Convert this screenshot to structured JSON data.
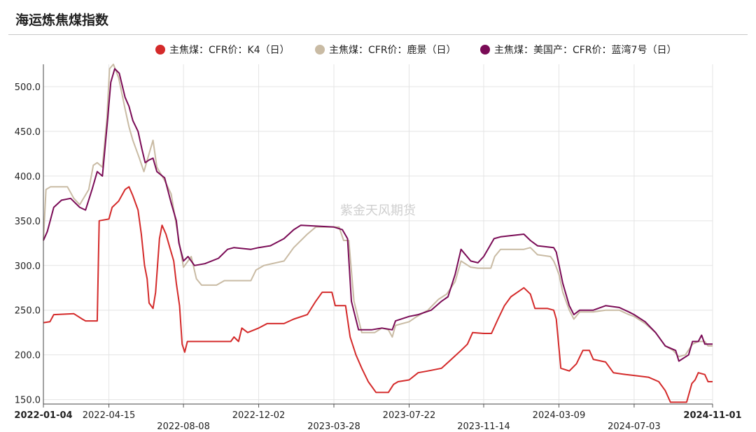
{
  "title": "海运炼焦煤指数",
  "watermark": "紫金天风期货",
  "colors": {
    "red": "#d42a2a",
    "beige": "#c9bba4",
    "purple": "#7a0b56",
    "grid": "#e4e4e4",
    "axis": "#333333"
  },
  "chart_data": {
    "type": "line",
    "ylim": [
      145,
      525
    ],
    "yticks": [
      "150.0",
      "200.0",
      "250.0",
      "300.0",
      "350.0",
      "400.0",
      "450.0",
      "500.0"
    ],
    "xticks": [
      {
        "label": "2022-01-04",
        "bold": true,
        "row": 0
      },
      {
        "label": "2022-04-15",
        "bold": false,
        "row": 0
      },
      {
        "label": "2022-08-08",
        "bold": false,
        "row": 1
      },
      {
        "label": "2022-12-02",
        "bold": false,
        "row": 0
      },
      {
        "label": "2023-03-28",
        "bold": false,
        "row": 1
      },
      {
        "label": "2023-07-22",
        "bold": false,
        "row": 0
      },
      {
        "label": "2023-11-14",
        "bold": false,
        "row": 1
      },
      {
        "label": "2024-03-09",
        "bold": false,
        "row": 0
      },
      {
        "label": "2024-07-03",
        "bold": false,
        "row": 1
      },
      {
        "label": "2024-11-01",
        "bold": true,
        "row": 0
      }
    ],
    "series": [
      {
        "name": "主焦煤：CFR价：K4（日）",
        "color": "#d42a2a",
        "points": [
          [
            "2022-01-04",
            236
          ],
          [
            "2022-01-14",
            237
          ],
          [
            "2022-01-20",
            245
          ],
          [
            "2022-02-20",
            246
          ],
          [
            "2022-03-05",
            240
          ],
          [
            "2022-03-10",
            238
          ],
          [
            "2022-03-28",
            238
          ],
          [
            "2022-03-31",
            350
          ],
          [
            "2022-04-15",
            352
          ],
          [
            "2022-04-20",
            365
          ],
          [
            "2022-04-30",
            372
          ],
          [
            "2022-05-10",
            385
          ],
          [
            "2022-05-16",
            388
          ],
          [
            "2022-05-22",
            378
          ],
          [
            "2022-05-30",
            362
          ],
          [
            "2022-06-04",
            335
          ],
          [
            "2022-06-09",
            300
          ],
          [
            "2022-06-13",
            285
          ],
          [
            "2022-06-16",
            258
          ],
          [
            "2022-06-22",
            252
          ],
          [
            "2022-06-26",
            270
          ],
          [
            "2022-07-02",
            330
          ],
          [
            "2022-07-06",
            345
          ],
          [
            "2022-07-12",
            335
          ],
          [
            "2022-07-18",
            320
          ],
          [
            "2022-07-24",
            305
          ],
          [
            "2022-07-28",
            280
          ],
          [
            "2022-08-02",
            255
          ],
          [
            "2022-08-06",
            212
          ],
          [
            "2022-08-10",
            203
          ],
          [
            "2022-08-14",
            215
          ],
          [
            "2022-09-10",
            215
          ],
          [
            "2022-10-20",
            215
          ],
          [
            "2022-10-25",
            220
          ],
          [
            "2022-11-01",
            215
          ],
          [
            "2022-11-06",
            230
          ],
          [
            "2022-11-15",
            225
          ],
          [
            "2022-12-02",
            230
          ],
          [
            "2022-12-15",
            235
          ],
          [
            "2023-01-10",
            235
          ],
          [
            "2023-01-25",
            240
          ],
          [
            "2023-02-15",
            245
          ],
          [
            "2023-02-28",
            260
          ],
          [
            "2023-03-10",
            270
          ],
          [
            "2023-03-25",
            270
          ],
          [
            "2023-03-30",
            255
          ],
          [
            "2023-04-15",
            255
          ],
          [
            "2023-04-22",
            220
          ],
          [
            "2023-05-01",
            200
          ],
          [
            "2023-05-10",
            185
          ],
          [
            "2023-05-20",
            170
          ],
          [
            "2023-06-01",
            158
          ],
          [
            "2023-06-20",
            158
          ],
          [
            "2023-06-28",
            167
          ],
          [
            "2023-07-05",
            170
          ],
          [
            "2023-07-22",
            172
          ],
          [
            "2023-08-05",
            180
          ],
          [
            "2023-08-20",
            182
          ],
          [
            "2023-09-10",
            185
          ],
          [
            "2023-09-25",
            195
          ],
          [
            "2023-10-10",
            205
          ],
          [
            "2023-10-20",
            212
          ],
          [
            "2023-10-28",
            225
          ],
          [
            "2023-11-14",
            224
          ],
          [
            "2023-11-26",
            224
          ],
          [
            "2023-12-06",
            240
          ],
          [
            "2023-12-16",
            255
          ],
          [
            "2023-12-26",
            265
          ],
          [
            "2024-01-05",
            270
          ],
          [
            "2024-01-15",
            275
          ],
          [
            "2024-01-25",
            268
          ],
          [
            "2024-02-01",
            252
          ],
          [
            "2024-02-20",
            252
          ],
          [
            "2024-03-01",
            250
          ],
          [
            "2024-03-05",
            240
          ],
          [
            "2024-03-12",
            185
          ],
          [
            "2024-03-25",
            182
          ],
          [
            "2024-04-05",
            190
          ],
          [
            "2024-04-15",
            205
          ],
          [
            "2024-04-25",
            205
          ],
          [
            "2024-05-01",
            195
          ],
          [
            "2024-05-20",
            192
          ],
          [
            "2024-06-01",
            180
          ],
          [
            "2024-06-20",
            178
          ],
          [
            "2024-07-03",
            177
          ],
          [
            "2024-07-25",
            175
          ],
          [
            "2024-08-10",
            170
          ],
          [
            "2024-08-20",
            160
          ],
          [
            "2024-08-28",
            147
          ],
          [
            "2024-09-22",
            147
          ],
          [
            "2024-09-30",
            168
          ],
          [
            "2024-10-05",
            172
          ],
          [
            "2024-10-10",
            180
          ],
          [
            "2024-10-20",
            178
          ],
          [
            "2024-10-25",
            170
          ],
          [
            "2024-11-01",
            170
          ]
        ]
      },
      {
        "name": "主焦煤：CFR价：鹿景（日）",
        "color": "#c9bba4",
        "points": [
          [
            "2022-01-04",
            328
          ],
          [
            "2022-01-08",
            385
          ],
          [
            "2022-01-15",
            388
          ],
          [
            "2022-02-10",
            388
          ],
          [
            "2022-02-20",
            375
          ],
          [
            "2022-03-01",
            368
          ],
          [
            "2022-03-15",
            385
          ],
          [
            "2022-03-22",
            412
          ],
          [
            "2022-03-28",
            415
          ],
          [
            "2022-04-05",
            410
          ],
          [
            "2022-04-12",
            465
          ],
          [
            "2022-04-16",
            520
          ],
          [
            "2022-04-22",
            525
          ],
          [
            "2022-04-30",
            510
          ],
          [
            "2022-05-10",
            475
          ],
          [
            "2022-05-16",
            455
          ],
          [
            "2022-05-22",
            440
          ],
          [
            "2022-06-01",
            420
          ],
          [
            "2022-06-08",
            405
          ],
          [
            "2022-06-14",
            420
          ],
          [
            "2022-06-22",
            440
          ],
          [
            "2022-06-28",
            410
          ],
          [
            "2022-07-10",
            395
          ],
          [
            "2022-07-20",
            380
          ],
          [
            "2022-07-28",
            345
          ],
          [
            "2022-08-08",
            298
          ],
          [
            "2022-08-20",
            310
          ],
          [
            "2022-08-28",
            285
          ],
          [
            "2022-09-05",
            278
          ],
          [
            "2022-09-28",
            278
          ],
          [
            "2022-10-10",
            283
          ],
          [
            "2022-11-20",
            283
          ],
          [
            "2022-11-28",
            295
          ],
          [
            "2022-12-10",
            300
          ],
          [
            "2023-01-10",
            305
          ],
          [
            "2023-01-25",
            320
          ],
          [
            "2023-02-15",
            335
          ],
          [
            "2023-02-28",
            343
          ],
          [
            "2023-04-05",
            343
          ],
          [
            "2023-04-12",
            328
          ],
          [
            "2023-04-20",
            328
          ],
          [
            "2023-04-28",
            260
          ],
          [
            "2023-05-10",
            225
          ],
          [
            "2023-05-30",
            225
          ],
          [
            "2023-06-10",
            230
          ],
          [
            "2023-06-20",
            228
          ],
          [
            "2023-06-26",
            220
          ],
          [
            "2023-07-01",
            233
          ],
          [
            "2023-07-22",
            237
          ],
          [
            "2023-08-01",
            242
          ],
          [
            "2023-08-20",
            250
          ],
          [
            "2023-09-05",
            262
          ],
          [
            "2023-09-18",
            268
          ],
          [
            "2023-10-01",
            282
          ],
          [
            "2023-10-10",
            305
          ],
          [
            "2023-10-25",
            298
          ],
          [
            "2023-11-05",
            297
          ],
          [
            "2023-11-25",
            297
          ],
          [
            "2023-12-01",
            310
          ],
          [
            "2023-12-10",
            318
          ],
          [
            "2024-01-05",
            318
          ],
          [
            "2024-01-15",
            318
          ],
          [
            "2024-01-25",
            320
          ],
          [
            "2024-02-05",
            312
          ],
          [
            "2024-02-25",
            310
          ],
          [
            "2024-03-01",
            305
          ],
          [
            "2024-03-05",
            298
          ],
          [
            "2024-03-09",
            290
          ],
          [
            "2024-03-15",
            270
          ],
          [
            "2024-03-25",
            250
          ],
          [
            "2024-04-01",
            240
          ],
          [
            "2024-04-10",
            248
          ],
          [
            "2024-05-01",
            248
          ],
          [
            "2024-05-20",
            250
          ],
          [
            "2024-06-10",
            250
          ],
          [
            "2024-06-25",
            245
          ],
          [
            "2024-07-03",
            243
          ],
          [
            "2024-07-20",
            235
          ],
          [
            "2024-08-05",
            225
          ],
          [
            "2024-08-20",
            210
          ],
          [
            "2024-09-01",
            205
          ],
          [
            "2024-09-10",
            198
          ],
          [
            "2024-09-20",
            200
          ],
          [
            "2024-10-01",
            212
          ],
          [
            "2024-10-10",
            215
          ],
          [
            "2024-10-20",
            215
          ],
          [
            "2024-10-25",
            210
          ],
          [
            "2024-11-01",
            210
          ]
        ]
      },
      {
        "name": "主焦煤：美国产：CFR价：蓝湾7号（日）",
        "color": "#7a0b56",
        "points": [
          [
            "2022-01-04",
            328
          ],
          [
            "2022-01-10",
            338
          ],
          [
            "2022-01-20",
            365
          ],
          [
            "2022-02-01",
            373
          ],
          [
            "2022-02-15",
            375
          ],
          [
            "2022-03-01",
            365
          ],
          [
            "2022-03-10",
            362
          ],
          [
            "2022-03-20",
            385
          ],
          [
            "2022-03-28",
            405
          ],
          [
            "2022-04-05",
            400
          ],
          [
            "2022-04-12",
            455
          ],
          [
            "2022-04-18",
            505
          ],
          [
            "2022-04-24",
            520
          ],
          [
            "2022-05-01",
            515
          ],
          [
            "2022-05-10",
            488
          ],
          [
            "2022-05-16",
            478
          ],
          [
            "2022-05-22",
            462
          ],
          [
            "2022-05-30",
            450
          ],
          [
            "2022-06-05",
            430
          ],
          [
            "2022-06-10",
            415
          ],
          [
            "2022-06-16",
            418
          ],
          [
            "2022-06-22",
            420
          ],
          [
            "2022-06-28",
            405
          ],
          [
            "2022-07-10",
            398
          ],
          [
            "2022-07-20",
            370
          ],
          [
            "2022-07-28",
            350
          ],
          [
            "2022-08-01",
            325
          ],
          [
            "2022-08-08",
            305
          ],
          [
            "2022-08-15",
            310
          ],
          [
            "2022-08-25",
            300
          ],
          [
            "2022-09-10",
            302
          ],
          [
            "2022-10-01",
            308
          ],
          [
            "2022-10-15",
            318
          ],
          [
            "2022-10-25",
            320
          ],
          [
            "2022-11-20",
            318
          ],
          [
            "2022-12-02",
            320
          ],
          [
            "2022-12-20",
            322
          ],
          [
            "2023-01-10",
            330
          ],
          [
            "2023-01-25",
            340
          ],
          [
            "2023-02-05",
            345
          ],
          [
            "2023-03-28",
            343
          ],
          [
            "2023-04-10",
            340
          ],
          [
            "2023-04-18",
            330
          ],
          [
            "2023-04-24",
            260
          ],
          [
            "2023-05-05",
            228
          ],
          [
            "2023-05-25",
            228
          ],
          [
            "2023-06-10",
            230
          ],
          [
            "2023-06-26",
            228
          ],
          [
            "2023-07-01",
            238
          ],
          [
            "2023-07-22",
            243
          ],
          [
            "2023-08-05",
            245
          ],
          [
            "2023-08-25",
            250
          ],
          [
            "2023-09-10",
            260
          ],
          [
            "2023-09-20",
            265
          ],
          [
            "2023-10-01",
            290
          ],
          [
            "2023-10-10",
            318
          ],
          [
            "2023-10-25",
            305
          ],
          [
            "2023-11-05",
            303
          ],
          [
            "2023-11-14",
            310
          ],
          [
            "2023-11-22",
            320
          ],
          [
            "2023-11-30",
            330
          ],
          [
            "2023-12-10",
            332
          ],
          [
            "2024-01-15",
            335
          ],
          [
            "2024-01-25",
            328
          ],
          [
            "2024-02-05",
            322
          ],
          [
            "2024-03-01",
            320
          ],
          [
            "2024-03-05",
            315
          ],
          [
            "2024-03-15",
            280
          ],
          [
            "2024-03-25",
            255
          ],
          [
            "2024-04-01",
            245
          ],
          [
            "2024-04-10",
            250
          ],
          [
            "2024-05-01",
            250
          ],
          [
            "2024-05-20",
            255
          ],
          [
            "2024-06-10",
            253
          ],
          [
            "2024-06-25",
            248
          ],
          [
            "2024-07-03",
            245
          ],
          [
            "2024-07-20",
            237
          ],
          [
            "2024-08-05",
            225
          ],
          [
            "2024-08-20",
            210
          ],
          [
            "2024-09-05",
            205
          ],
          [
            "2024-09-10",
            193
          ],
          [
            "2024-09-25",
            200
          ],
          [
            "2024-10-01",
            215
          ],
          [
            "2024-10-10",
            215
          ],
          [
            "2024-10-15",
            222
          ],
          [
            "2024-10-20",
            212
          ],
          [
            "2024-11-01",
            212
          ]
        ]
      }
    ]
  }
}
